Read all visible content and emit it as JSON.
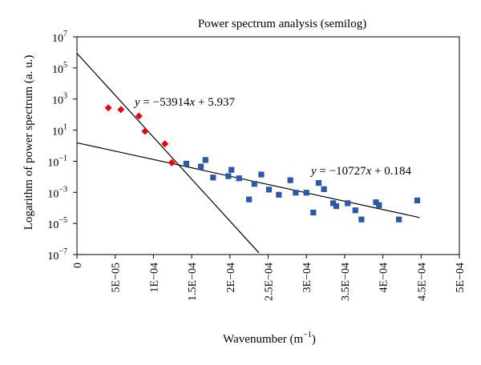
{
  "chart_data": {
    "type": "scatter",
    "title": "Power spectrum analysis (semilog)",
    "xlabel": "Wavenumber (m",
    "xlabel_sup": "−1",
    "xlabel_close": ")",
    "ylabel": "Logarithm of power spectrum (a. u.)",
    "xlim": [
      0,
      0.0005
    ],
    "ylim_log10": [
      -7,
      7
    ],
    "y_scale": "log",
    "x_ticks": [
      {
        "value": 0,
        "label": "0"
      },
      {
        "value": 5e-05,
        "label": "5E−05"
      },
      {
        "value": 0.0001,
        "label": "1E−04"
      },
      {
        "value": 0.00015,
        "label": "1.5E−04"
      },
      {
        "value": 0.0002,
        "label": "2E−04"
      },
      {
        "value": 0.00025,
        "label": "2.5E−04"
      },
      {
        "value": 0.0003,
        "label": "3E−04"
      },
      {
        "value": 0.00035,
        "label": "3.5E−04"
      },
      {
        "value": 0.0004,
        "label": "4E−04"
      },
      {
        "value": 0.00045,
        "label": "4.5E−04"
      },
      {
        "value": 0.0005,
        "label": "5E−04"
      }
    ],
    "y_ticks": [
      {
        "exp": 7,
        "base": "10",
        "sup": "7"
      },
      {
        "exp": 5,
        "base": "10",
        "sup": "5"
      },
      {
        "exp": 3,
        "base": "10",
        "sup": "3"
      },
      {
        "exp": 1,
        "base": "10",
        "sup": "1"
      },
      {
        "exp": -1,
        "base": "10",
        "sup": "−1"
      },
      {
        "exp": -3,
        "base": "10",
        "sup": "−3"
      },
      {
        "exp": -5,
        "base": "10",
        "sup": "−5"
      },
      {
        "exp": -7,
        "base": "10",
        "sup": "−7"
      }
    ],
    "series": [
      {
        "color": "#e8000b",
        "marker": "diamond",
        "points": [
          {
            "x": 4.1e-05,
            "y": 270
          },
          {
            "x": 5.75e-05,
            "y": 210
          },
          {
            "x": 8.1e-05,
            "y": 80
          },
          {
            "x": 8.9e-05,
            "y": 8.5
          },
          {
            "x": 0.000115,
            "y": 1.3
          },
          {
            "x": 0.000124,
            "y": 0.08
          }
        ]
      },
      {
        "color": "#2b58a8",
        "marker": "square",
        "points": [
          {
            "x": 0.000143,
            "y": 0.07
          },
          {
            "x": 0.000162,
            "y": 0.045
          },
          {
            "x": 0.000168,
            "y": 0.12
          },
          {
            "x": 0.000178,
            "y": 0.009
          },
          {
            "x": 0.000198,
            "y": 0.011
          },
          {
            "x": 0.000202,
            "y": 0.028
          },
          {
            "x": 0.000212,
            "y": 0.008
          },
          {
            "x": 0.000225,
            "y": 0.00035
          },
          {
            "x": 0.000232,
            "y": 0.0035
          },
          {
            "x": 0.000241,
            "y": 0.014
          },
          {
            "x": 0.000251,
            "y": 0.0015
          },
          {
            "x": 0.000264,
            "y": 0.0007
          },
          {
            "x": 0.000279,
            "y": 0.006
          },
          {
            "x": 0.000286,
            "y": 0.00095
          },
          {
            "x": 0.0003,
            "y": 0.00095
          },
          {
            "x": 0.000309,
            "y": 5e-05
          },
          {
            "x": 0.000316,
            "y": 0.004
          },
          {
            "x": 0.000323,
            "y": 0.0016
          },
          {
            "x": 0.000335,
            "y": 0.0002
          },
          {
            "x": 0.000339,
            "y": 0.00013
          },
          {
            "x": 0.000354,
            "y": 0.0002
          },
          {
            "x": 0.000364,
            "y": 7e-05
          },
          {
            "x": 0.000372,
            "y": 1.8e-05
          },
          {
            "x": 0.000391,
            "y": 0.00023
          },
          {
            "x": 0.000395,
            "y": 0.00015
          },
          {
            "x": 0.000421,
            "y": 1.8e-05
          },
          {
            "x": 0.000445,
            "y": 0.0003
          }
        ]
      }
    ],
    "fit_lines": [
      {
        "equation_prefix": "y",
        "equation_middle": " = −53914",
        "equation_var": "x",
        "equation_suffix": " + 5.937",
        "slope": -53914,
        "intercept": 5.937,
        "x_range": [
          0,
          0.000238
        ]
      },
      {
        "equation_prefix": "y",
        "equation_middle": " = −10727",
        "equation_var": "x",
        "equation_suffix": " + 0.184",
        "slope": -10727,
        "intercept": 0.184,
        "x_range": [
          0,
          0.000448
        ]
      }
    ]
  }
}
